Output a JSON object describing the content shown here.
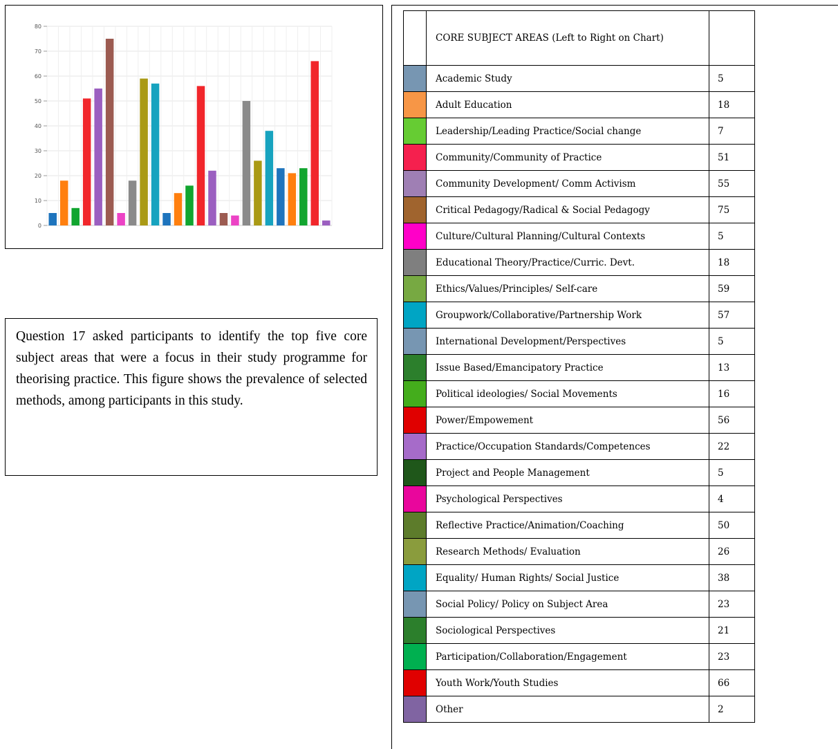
{
  "chart_data": {
    "type": "bar",
    "yticks": [
      0,
      10,
      20,
      30,
      40,
      50,
      60,
      70,
      80
    ],
    "ylim": [
      0,
      80
    ],
    "grid": true,
    "legend": "none",
    "categories": [
      "Academic Study",
      "Adult Education",
      "Leadership/Leading Practice/Social change",
      "Community/Community  of Practice",
      "Community  Development/  Comm Activism",
      "Critical Pedagogy/Radical & Social Pedagogy",
      "Culture/Cultural  Planning/Cultural Contexts",
      "Educational Theory/Practice/Curric. Devt.",
      "Ethics/Values/Principles/ Self-care",
      "Groupwork/Collaborative/Partnership Work",
      "International Development/Perspectives",
      "Issue Based/Emancipatory Practice",
      "Political ideologies/ Social Movements",
      "Power/Empowement",
      "Practice/Occupation  Standards/Competences",
      "Project  and People  Management",
      "Psychological Perspectives",
      "Reflective Practice/Animation/Coaching",
      "Research Methods/ Evaluation",
      "Equality/ Human Rights/ Social Justice",
      "Social Policy/ Policy on Subject Area",
      "Sociological Perspectives",
      "Participation/Collaboration/Engagement",
      "Youth Work/Youth Studies",
      "Other"
    ],
    "values": [
      5,
      18,
      7,
      51,
      55,
      75,
      5,
      18,
      59,
      57,
      5,
      13,
      16,
      56,
      22,
      5,
      4,
      50,
      26,
      38,
      23,
      21,
      23,
      66,
      2
    ],
    "bar_colors": [
      "#1e74bd",
      "#ff7f0e",
      "#11a52f",
      "#f1262b",
      "#9b5fc0",
      "#9c5b51",
      "#ec43c5",
      "#8a8a8a",
      "#aa9a15",
      "#17a3bf",
      "#1e74bd",
      "#ff7f0e",
      "#11a52f",
      "#f1262b",
      "#9b5fc0",
      "#9c5b51",
      "#ec43c5",
      "#8a8a8a",
      "#aa9a15",
      "#17a3bf",
      "#1e74bd",
      "#ff7f0e",
      "#11a52f",
      "#f1262b",
      "#9b5fc0"
    ]
  },
  "caption": "Question 17 asked participants to identify the top five core subject areas that were a focus in their study programme for theorising practice. This figure shows the prevalence of selected methods, among participants in this study.",
  "table": {
    "header": "CORE  SUBJECT  AREAS  (Left  to  Right  on Chart)",
    "swatch_colors": [
      "#7796b2",
      "#f79646",
      "#66cc33",
      "#f5204e",
      "#9f7fb4",
      "#a0642e",
      "#ff00c8",
      "#7f7f7f",
      "#77a942",
      "#00a5c4",
      "#7796b2",
      "#2c7f2c",
      "#44ad1c",
      "#e00000",
      "#a66bc9",
      "#1f571a",
      "#e9069c",
      "#5d7c2b",
      "#8a9c3d",
      "#00a5c4",
      "#7796b2",
      "#2c7f2c",
      "#00b050",
      "#e00000",
      "#8064a2"
    ]
  }
}
